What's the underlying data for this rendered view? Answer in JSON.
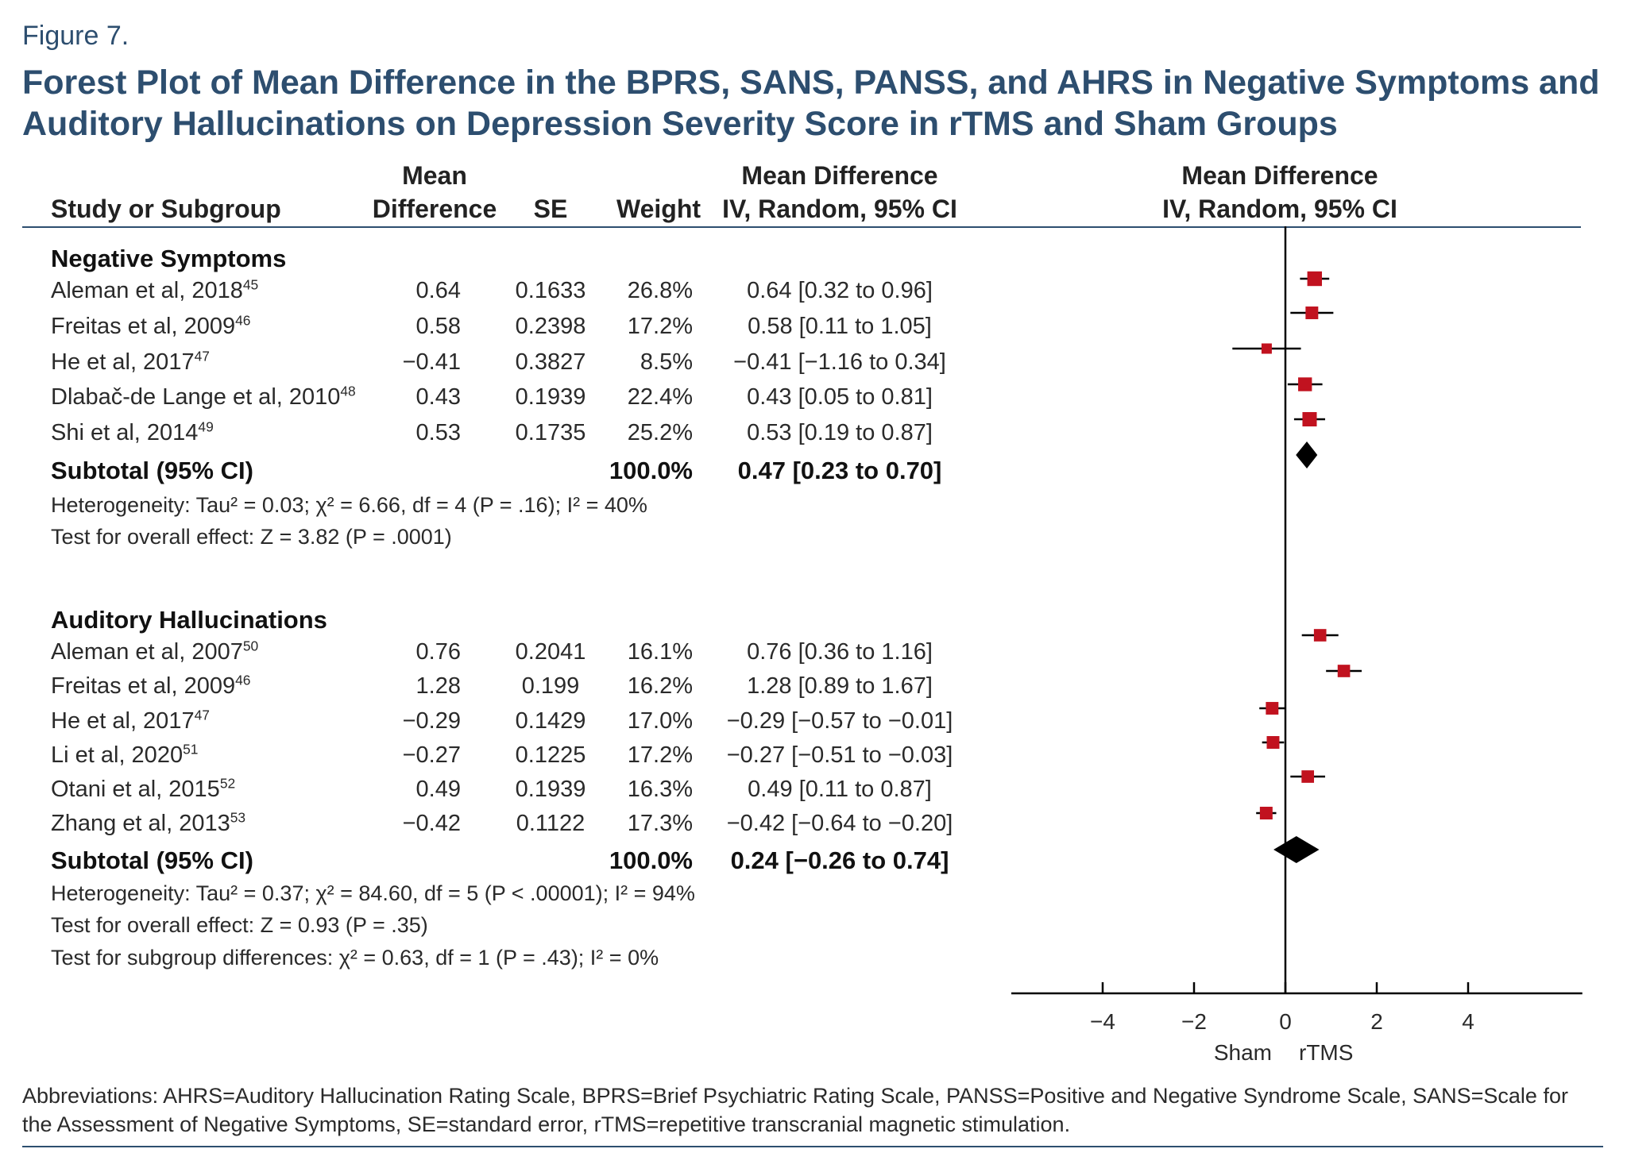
{
  "figure_label": "Figure 7.",
  "title": "Forest Plot of Mean Difference in the BPRS, SANS, PANSS, and AHRS in Negative Symptoms and Auditory Hallucinations on Depression Severity Score in rTMS and Sham Groups",
  "headers": {
    "study": "Study or Subgroup",
    "md_line1": "Mean",
    "md_line2": "Difference",
    "se": "SE",
    "weight": "Weight",
    "ci_line1": "Mean Difference",
    "ci_line2": "IV, Random, 95% CI",
    "plot_line1": "Mean Difference",
    "plot_line2": "IV, Random, 95% CI"
  },
  "groups": [
    {
      "name": "Negative Symptoms",
      "studies": [
        {
          "study": "Aleman et al, 2018",
          "ref": "45",
          "md": "0.64",
          "se": "0.1633",
          "weight": "26.8%",
          "ci": "0.64 [0.32 to 0.96]"
        },
        {
          "study": "Freitas et al, 2009",
          "ref": "46",
          "md": "0.58",
          "se": "0.2398",
          "weight": "17.2%",
          "ci": "0.58 [0.11 to 1.05]"
        },
        {
          "study": "He et al, 2017",
          "ref": "47",
          "md": "−0.41",
          "se": "0.3827",
          "weight": "8.5%",
          "ci": "−0.41 [−1.16 to 0.34]"
        },
        {
          "study": "Dlabač-de Lange et al, 2010",
          "ref": "48",
          "md": "0.43",
          "se": "0.1939",
          "weight": "22.4%",
          "ci": "0.43 [0.05 to 0.81]"
        },
        {
          "study": "Shi et al, 2014",
          "ref": "49",
          "md": "0.53",
          "se": "0.1735",
          "weight": "25.2%",
          "ci": "0.53 [0.19 to 0.87]"
        }
      ],
      "subtotal": {
        "label": "Subtotal (95% CI)",
        "weight": "100.0%",
        "ci": "0.47 [0.23 to 0.70]"
      },
      "notes": [
        "Heterogeneity: Tau² = 0.03; χ² = 6.66, df = 4 (P = .16); I² = 40%",
        "Test for overall effect: Z = 3.82 (P = .0001)"
      ]
    },
    {
      "name": "Auditory Hallucinations",
      "studies": [
        {
          "study": "Aleman et al, 2007",
          "ref": "50",
          "md": "0.76",
          "se": "0.2041",
          "weight": "16.1%",
          "ci": "0.76 [0.36 to 1.16]"
        },
        {
          "study": "Freitas et al, 2009",
          "ref": "46",
          "md": "1.28",
          "se": "0.199",
          "weight": "16.2%",
          "ci": "1.28 [0.89 to 1.67]"
        },
        {
          "study": "He et al, 2017",
          "ref": "47",
          "md": "−0.29",
          "se": "0.1429",
          "weight": "17.0%",
          "ci": "−0.29 [−0.57 to −0.01]"
        },
        {
          "study": "Li et al, 2020",
          "ref": "51",
          "md": "−0.27",
          "se": "0.1225",
          "weight": "17.2%",
          "ci": "−0.27 [−0.51 to −0.03]"
        },
        {
          "study": "Otani et al, 2015",
          "ref": "52",
          "md": "0.49",
          "se": "0.1939",
          "weight": "16.3%",
          "ci": "0.49 [0.11 to 0.87]"
        },
        {
          "study": "Zhang et al, 2013",
          "ref": "53",
          "md": "−0.42",
          "se": "0.1122",
          "weight": "17.3%",
          "ci": "−0.42 [−0.64 to −0.20]"
        }
      ],
      "subtotal": {
        "label": "Subtotal (95% CI)",
        "weight": "100.0%",
        "ci": "0.24 [−0.26 to 0.74]"
      },
      "notes": [
        "Heterogeneity: Tau² = 0.37; χ² = 84.60, df = 5 (P < .00001); I² = 94%",
        "Test for overall effect: Z = 0.93 (P = .35)",
        "Test for subgroup differences: χ² = 0.63, df = 1 (P = .43); I² = 0%"
      ]
    }
  ],
  "footnote": "Abbreviations: AHRS=Auditory Hallucination Rating Scale, BPRS=Brief Psychiatric Rating Scale, PANSS=Positive and Negative Syndrome Scale, SANS=Scale for the Assessment of Negative Symptoms, SE=standard error, rTMS=repetitive transcranial magnetic stimulation.",
  "chart_data": {
    "type": "forest",
    "xlim": [
      -6,
      6.5
    ],
    "xticks": [
      -4,
      -2,
      0,
      2,
      4
    ],
    "tick_labels": [
      "−4",
      "−2",
      "0",
      "2",
      "4"
    ],
    "axis_left_label": "Sham",
    "axis_right_label": "rTMS",
    "colors": {
      "marker": "#c1121f",
      "diamond": "#000000",
      "line": "#000000"
    },
    "groups": [
      {
        "name": "Negative Symptoms",
        "points": [
          {
            "md": 0.64,
            "lo": 0.32,
            "hi": 0.96,
            "weight": 26.8
          },
          {
            "md": 0.58,
            "lo": 0.11,
            "hi": 1.05,
            "weight": 17.2
          },
          {
            "md": -0.41,
            "lo": -1.16,
            "hi": 0.34,
            "weight": 8.5
          },
          {
            "md": 0.43,
            "lo": 0.05,
            "hi": 0.81,
            "weight": 22.4
          },
          {
            "md": 0.53,
            "lo": 0.19,
            "hi": 0.87,
            "weight": 25.2
          }
        ],
        "pooled": {
          "md": 0.47,
          "lo": 0.23,
          "hi": 0.7
        }
      },
      {
        "name": "Auditory Hallucinations",
        "points": [
          {
            "md": 0.76,
            "lo": 0.36,
            "hi": 1.16,
            "weight": 16.1
          },
          {
            "md": 1.28,
            "lo": 0.89,
            "hi": 1.67,
            "weight": 16.2
          },
          {
            "md": -0.29,
            "lo": -0.57,
            "hi": -0.01,
            "weight": 17.0
          },
          {
            "md": -0.27,
            "lo": -0.51,
            "hi": -0.03,
            "weight": 17.2
          },
          {
            "md": 0.49,
            "lo": 0.11,
            "hi": 0.87,
            "weight": 16.3
          },
          {
            "md": -0.42,
            "lo": -0.64,
            "hi": -0.2,
            "weight": 17.3
          }
        ],
        "pooled": {
          "md": 0.24,
          "lo": -0.26,
          "hi": 0.74
        }
      }
    ]
  }
}
